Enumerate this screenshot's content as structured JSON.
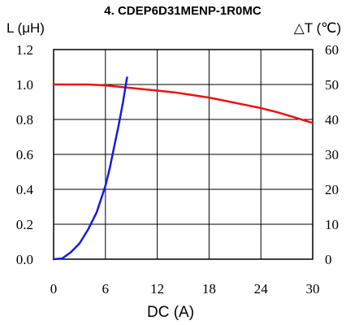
{
  "chart_data": {
    "type": "line",
    "title": "4. CDEP6D31MENP-1R0MC",
    "xlabel": "DC (A)",
    "ylabel_left": "L (μH)",
    "ylabel_right": "△T (℃)",
    "xlim": [
      0,
      30
    ],
    "ylim_left": [
      0,
      1.2
    ],
    "ylim_right": [
      0,
      60
    ],
    "x_ticks": [
      "0",
      "6",
      "12",
      "18",
      "24",
      "30"
    ],
    "y_left_ticks": [
      "0.0",
      "0.2",
      "0.4",
      "0.6",
      "0.8",
      "1.0",
      "1.2"
    ],
    "y_right_ticks": [
      "0",
      "10",
      "20",
      "30",
      "40",
      "50",
      "60"
    ],
    "grid": true,
    "series": [
      {
        "axis": "left",
        "color": "#ee1111",
        "points": [
          [
            0,
            1.0
          ],
          [
            2,
            1.0
          ],
          [
            4,
            1.0
          ],
          [
            6,
            0.995
          ],
          [
            8,
            0.985
          ],
          [
            10,
            0.975
          ],
          [
            12,
            0.965
          ],
          [
            14,
            0.955
          ],
          [
            16,
            0.94
          ],
          [
            18,
            0.925
          ],
          [
            20,
            0.905
          ],
          [
            22,
            0.885
          ],
          [
            24,
            0.865
          ],
          [
            26,
            0.84
          ],
          [
            28,
            0.81
          ],
          [
            30,
            0.78
          ]
        ]
      },
      {
        "axis": "right",
        "color": "#1a1adf",
        "points": [
          [
            0,
            0
          ],
          [
            1,
            0.2
          ],
          [
            2,
            2
          ],
          [
            3,
            4.5
          ],
          [
            4,
            8.5
          ],
          [
            5,
            13.5
          ],
          [
            6,
            21
          ],
          [
            6.5,
            26
          ],
          [
            7,
            32
          ],
          [
            7.5,
            38
          ],
          [
            8,
            44.5
          ],
          [
            8.5,
            52
          ]
        ]
      }
    ]
  }
}
